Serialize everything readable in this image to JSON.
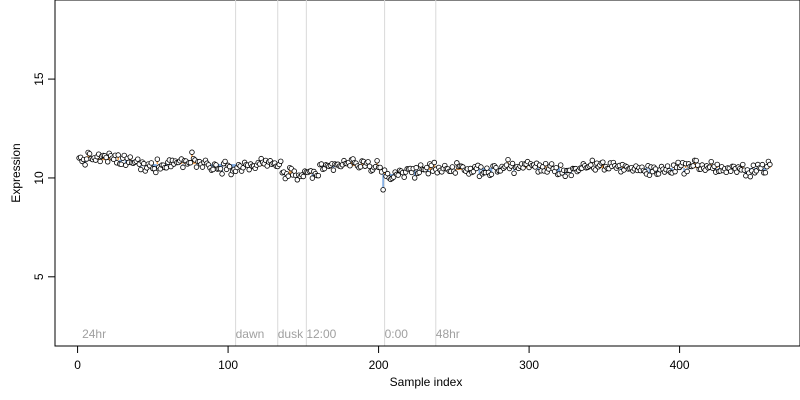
{
  "chart_data": {
    "type": "scatter",
    "xlabel": "Sample index",
    "ylabel": "Expression",
    "xlim": [
      -15,
      480
    ],
    "ylim": [
      1.5,
      19
    ],
    "xticks": [
      0,
      100,
      200,
      300,
      400
    ],
    "yticks": [
      5,
      10,
      15
    ],
    "annotations": [
      {
        "x": 3,
        "label": "24hr"
      },
      {
        "x": 105,
        "label": "dawn"
      },
      {
        "x": 133,
        "label": "dusk"
      },
      {
        "x": 152,
        "label": "12:00"
      },
      {
        "x": 204,
        "label": "0:00"
      },
      {
        "x": 238,
        "label": "48hr"
      }
    ],
    "vlines": [
      105,
      133,
      152,
      204,
      238
    ],
    "colors": {
      "above_baseline": "#f0a050",
      "below_baseline": "#7aa7e0",
      "point_stroke": "#000000",
      "point_fill": "#ffffff",
      "vline": "#d9d9d9"
    },
    "series": [
      {
        "n": 460,
        "trend_segments": [
          {
            "x_start": 1,
            "x_end": 40,
            "baseline": 10.9
          },
          {
            "x_start": 40,
            "x_end": 105,
            "baseline": 10.7
          },
          {
            "x_start": 105,
            "x_end": 135,
            "baseline": 10.6
          },
          {
            "x_start": 135,
            "x_end": 160,
            "baseline": 10.2
          },
          {
            "x_start": 160,
            "x_end": 200,
            "baseline": 10.6
          },
          {
            "x_start": 200,
            "x_end": 210,
            "baseline": 10.2
          },
          {
            "x_start": 210,
            "x_end": 260,
            "baseline": 10.4
          },
          {
            "x_start": 260,
            "x_end": 460,
            "baseline": 10.5
          }
        ],
        "approx_range": [
          9.4,
          11.3
        ]
      }
    ]
  }
}
